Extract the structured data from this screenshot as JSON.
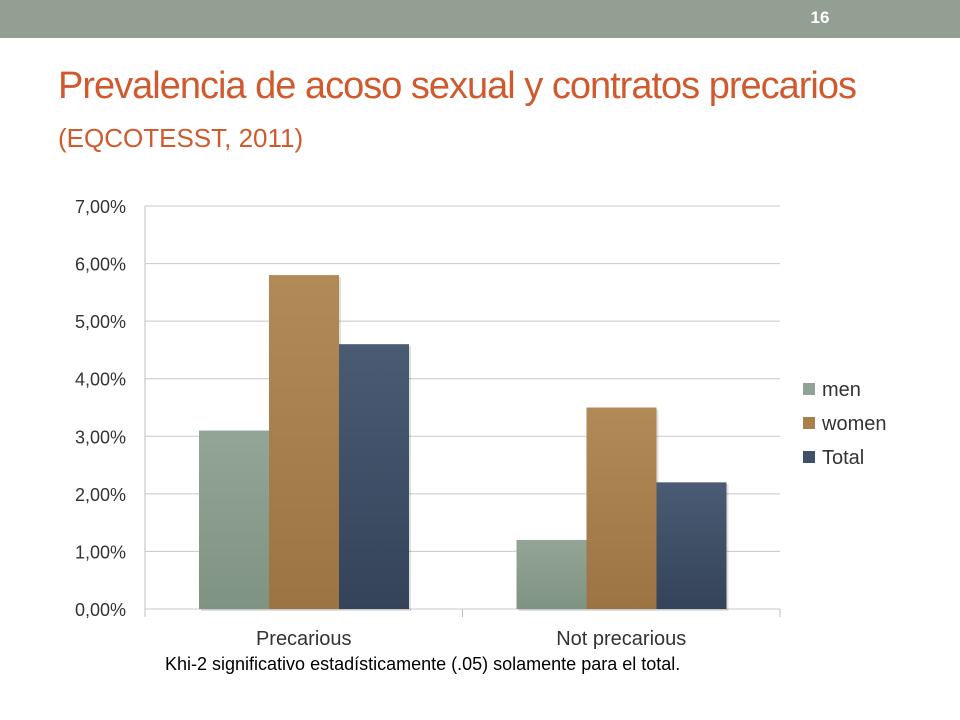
{
  "slide": {
    "number": "16",
    "title_main": "Prevalencia de acoso sexual y contratos precarios",
    "title_sub": "(EQCOTESST, 2011)",
    "footnote": "Khi-2 significativo estadísticamente (.05) solamente para el total."
  },
  "chart_data": {
    "type": "bar",
    "categories": [
      "Precarious",
      "Not precarious"
    ],
    "series": [
      {
        "name": "men",
        "values": [
          3.1,
          1.2
        ],
        "color": "#8fa293"
      },
      {
        "name": "women",
        "values": [
          5.8,
          3.5
        ],
        "color": "#a97f4c"
      },
      {
        "name": "Total",
        "values": [
          4.6,
          2.2
        ],
        "color": "#3f5068"
      }
    ],
    "ylim": [
      0,
      7
    ],
    "yticks": [
      0,
      1,
      2,
      3,
      4,
      5,
      6,
      7
    ],
    "ytick_labels": [
      "0,00%",
      "1,00%",
      "2,00%",
      "3,00%",
      "4,00%",
      "5,00%",
      "6,00%",
      "7,00%"
    ],
    "grid": true,
    "legend_position": "right"
  }
}
